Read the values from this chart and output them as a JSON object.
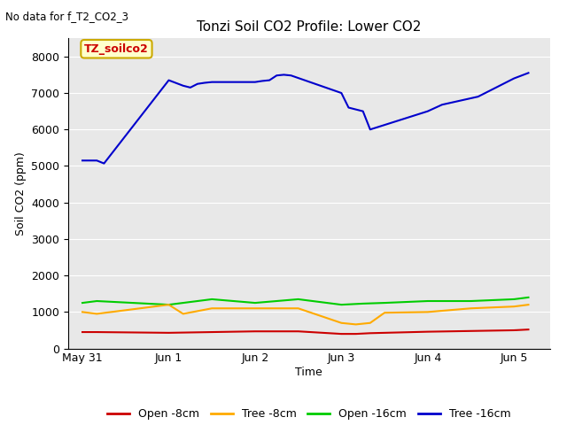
{
  "title": "Tonzi Soil CO2 Profile: Lower CO2",
  "no_data_text": "No data for f_T2_CO2_3",
  "xlabel": "Time",
  "ylabel": "Soil CO2 (ppm)",
  "ylim": [
    0,
    8500
  ],
  "yticks": [
    0,
    1000,
    2000,
    3000,
    4000,
    5000,
    6000,
    7000,
    8000
  ],
  "background_color": "#e8e8e8",
  "legend_labels": [
    "Open -8cm",
    "Tree -8cm",
    "Open -16cm",
    "Tree -16cm"
  ],
  "legend_colors": [
    "#cc0000",
    "#ffaa00",
    "#00cc00",
    "#0000cc"
  ],
  "annotation_label": "TZ_soilco2",
  "annotation_bg": "#ffffcc",
  "annotation_border": "#ccaa00",
  "x_tick_labels": [
    "May 31",
    "Jun 1",
    "Jun 2",
    "Jun 3",
    "Jun 4",
    "Jun 5"
  ],
  "x_tick_positions": [
    0,
    24,
    48,
    72,
    96,
    120
  ],
  "x_lim": [
    -4,
    130
  ],
  "tree16_x": [
    0,
    4,
    6,
    24,
    28,
    30,
    32,
    34,
    36,
    48,
    50,
    52,
    54,
    56,
    58,
    72,
    74,
    76,
    78,
    80,
    96,
    100,
    110,
    120,
    124
  ],
  "tree16_y": [
    5150,
    5150,
    5070,
    7350,
    7200,
    7150,
    7250,
    7280,
    7300,
    7300,
    7330,
    7350,
    7480,
    7500,
    7480,
    7000,
    6600,
    6550,
    6500,
    6000,
    6500,
    6680,
    6900,
    7400,
    7550
  ],
  "open16_x": [
    0,
    4,
    24,
    36,
    48,
    60,
    72,
    78,
    84,
    96,
    108,
    120,
    124
  ],
  "open16_y": [
    1250,
    1300,
    1200,
    1350,
    1250,
    1350,
    1200,
    1230,
    1250,
    1300,
    1300,
    1350,
    1400
  ],
  "tree8_x": [
    0,
    4,
    24,
    28,
    36,
    48,
    60,
    72,
    76,
    80,
    84,
    96,
    108,
    120,
    124
  ],
  "tree8_y": [
    1000,
    950,
    1200,
    950,
    1100,
    1100,
    1100,
    700,
    660,
    700,
    980,
    1000,
    1100,
    1150,
    1200
  ],
  "open8_x": [
    0,
    4,
    24,
    36,
    48,
    60,
    72,
    76,
    80,
    96,
    108,
    120,
    124
  ],
  "open8_y": [
    450,
    450,
    430,
    450,
    470,
    470,
    400,
    400,
    420,
    460,
    480,
    500,
    520
  ]
}
